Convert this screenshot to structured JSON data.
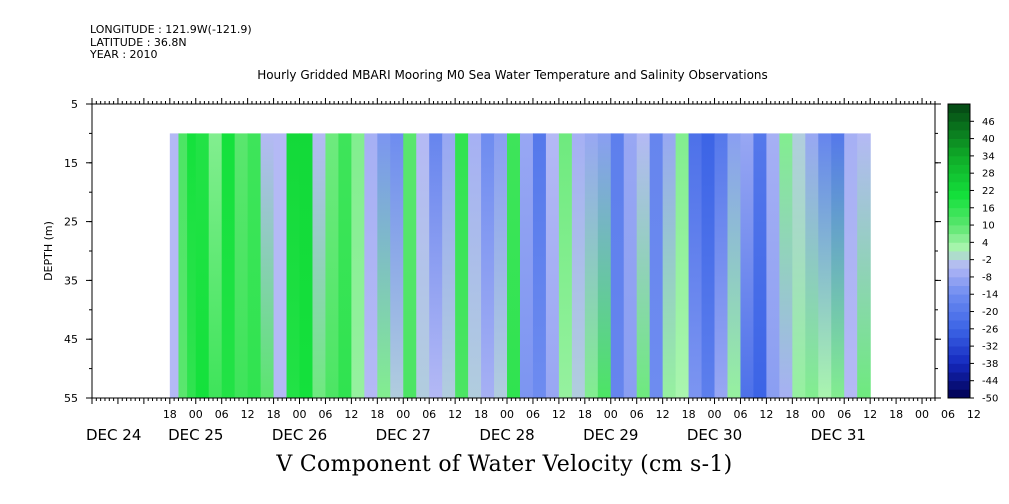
{
  "header": {
    "longitude": "LONGITUDE : 121.9W(-121.9)",
    "latitude": "LATITUDE : 36.8N",
    "year": "YEAR : 2010"
  },
  "chart_data": {
    "type": "heatmap",
    "title": "Hourly Gridded MBARI Mooring M0 Sea Water Temperature and Salinity Observations",
    "xlabel": "V Component of Water Velocity (cm s-1)",
    "ylabel": "DEPTH (m)",
    "y_range": [
      5,
      55
    ],
    "y_inverted": true,
    "y_ticks": [
      5,
      15,
      25,
      35,
      45,
      55
    ],
    "data_depth_range": [
      10,
      55
    ],
    "x_hour_ticks": [
      "18",
      "00",
      "06",
      "12",
      "18",
      "00",
      "06",
      "12",
      "18",
      "00",
      "06",
      "12",
      "18",
      "00",
      "06",
      "12",
      "18",
      "00",
      "06",
      "12",
      "18",
      "00",
      "06",
      "12",
      "18",
      "00",
      "06",
      "12",
      "18",
      "00",
      "06",
      "12"
    ],
    "x_day_labels": [
      "DEC 24",
      "DEC 25",
      "DEC 26",
      "DEC 27",
      "DEC 28",
      "DEC 29",
      "DEC 30",
      "DEC 31"
    ],
    "colorbar": {
      "labels": [
        "46",
        "40",
        "34",
        "28",
        "22",
        "16",
        "10",
        "4",
        "-2",
        "-8",
        "-14",
        "-20",
        "-26",
        "-32",
        "-38",
        "-44",
        "-50"
      ],
      "min": -50,
      "max": 52,
      "step": 3,
      "colors": {
        "strong_positive": "#0a5a14",
        "positive": "#14e03a",
        "weak_positive": "#a0f0a8",
        "weak_negative": "#b4b8f0",
        "negative": "#5a78e0",
        "strong_negative": "#000060"
      }
    },
    "columns_hours": [
      {
        "start_hour": 18,
        "end_hour": 20,
        "surface": -4,
        "bottom": -4
      },
      {
        "start_hour": 20,
        "end_hour": 22,
        "surface": 12,
        "bottom": 10
      },
      {
        "start_hour": 22,
        "end_hour": 24,
        "surface": 20,
        "bottom": 16
      },
      {
        "start_hour": 24,
        "end_hour": 27,
        "surface": 18,
        "bottom": 20
      },
      {
        "start_hour": 27,
        "end_hour": 30,
        "surface": 6,
        "bottom": 14
      },
      {
        "start_hour": 30,
        "end_hour": 33,
        "surface": 20,
        "bottom": 18
      },
      {
        "start_hour": 33,
        "end_hour": 36,
        "surface": 10,
        "bottom": 14
      },
      {
        "start_hour": 36,
        "end_hour": 39,
        "surface": 14,
        "bottom": 16
      },
      {
        "start_hour": 39,
        "end_hour": 42,
        "surface": -4,
        "bottom": 10
      },
      {
        "start_hour": 42,
        "end_hour": 45,
        "surface": -4,
        "bottom": -4
      },
      {
        "start_hour": 45,
        "end_hour": 48,
        "surface": 22,
        "bottom": 18
      },
      {
        "start_hour": 48,
        "end_hour": 51,
        "surface": 22,
        "bottom": 20
      },
      {
        "start_hour": 51,
        "end_hour": 54,
        "surface": -4,
        "bottom": 8
      },
      {
        "start_hour": 54,
        "end_hour": 57,
        "surface": 8,
        "bottom": 12
      },
      {
        "start_hour": 57,
        "end_hour": 60,
        "surface": 14,
        "bottom": 16
      },
      {
        "start_hour": 60,
        "end_hour": 63,
        "surface": 6,
        "bottom": 4
      },
      {
        "start_hour": 63,
        "end_hour": 66,
        "surface": -6,
        "bottom": -4
      },
      {
        "start_hour": 66,
        "end_hour": 69,
        "surface": -12,
        "bottom": 6
      },
      {
        "start_hour": 69,
        "end_hour": 72,
        "surface": -14,
        "bottom": -2
      },
      {
        "start_hour": 72,
        "end_hour": 75,
        "surface": 10,
        "bottom": 12
      },
      {
        "start_hour": 75,
        "end_hour": 78,
        "surface": -4,
        "bottom": -2
      },
      {
        "start_hour": 78,
        "end_hour": 81,
        "surface": -16,
        "bottom": -4
      },
      {
        "start_hour": 81,
        "end_hour": 84,
        "surface": -8,
        "bottom": -2
      },
      {
        "start_hour": 84,
        "end_hour": 87,
        "surface": 16,
        "bottom": 12
      },
      {
        "start_hour": 87,
        "end_hour": 90,
        "surface": -6,
        "bottom": -2
      },
      {
        "start_hour": 90,
        "end_hour": 93,
        "surface": -14,
        "bottom": -6
      },
      {
        "start_hour": 93,
        "end_hour": 96,
        "surface": -10,
        "bottom": -2
      },
      {
        "start_hour": 96,
        "end_hour": 99,
        "surface": 14,
        "bottom": 16
      },
      {
        "start_hour": 99,
        "end_hour": 102,
        "surface": -8,
        "bottom": -12
      },
      {
        "start_hour": 102,
        "end_hour": 105,
        "surface": -20,
        "bottom": -14
      },
      {
        "start_hour": 105,
        "end_hour": 108,
        "surface": -4,
        "bottom": -8
      },
      {
        "start_hour": 108,
        "end_hour": 111,
        "surface": 8,
        "bottom": 4
      },
      {
        "start_hour": 111,
        "end_hour": 114,
        "surface": -6,
        "bottom": -2
      },
      {
        "start_hour": 114,
        "end_hour": 117,
        "surface": -8,
        "bottom": 6
      },
      {
        "start_hour": 117,
        "end_hour": 120,
        "surface": -10,
        "bottom": 12
      },
      {
        "start_hour": 120,
        "end_hour": 123,
        "surface": -18,
        "bottom": -16
      },
      {
        "start_hour": 123,
        "end_hour": 126,
        "surface": -8,
        "bottom": -10
      },
      {
        "start_hour": 126,
        "end_hour": 129,
        "surface": -4,
        "bottom": 8
      },
      {
        "start_hour": 129,
        "end_hour": 132,
        "surface": -16,
        "bottom": -14
      },
      {
        "start_hour": 132,
        "end_hour": 135,
        "surface": -8,
        "bottom": 4
      },
      {
        "start_hour": 135,
        "end_hour": 138,
        "surface": 6,
        "bottom": 2
      },
      {
        "start_hour": 138,
        "end_hour": 141,
        "surface": -22,
        "bottom": -12
      },
      {
        "start_hour": 141,
        "end_hour": 144,
        "surface": -26,
        "bottom": -18
      },
      {
        "start_hour": 144,
        "end_hour": 147,
        "surface": -20,
        "bottom": -8
      },
      {
        "start_hour": 147,
        "end_hour": 150,
        "surface": -10,
        "bottom": 4
      },
      {
        "start_hour": 150,
        "end_hour": 153,
        "surface": -8,
        "bottom": -22
      },
      {
        "start_hour": 153,
        "end_hour": 156,
        "surface": -20,
        "bottom": -26
      },
      {
        "start_hour": 156,
        "end_hour": 159,
        "surface": -6,
        "bottom": -10
      },
      {
        "start_hour": 159,
        "end_hour": 162,
        "surface": 6,
        "bottom": -6
      },
      {
        "start_hour": 162,
        "end_hour": 165,
        "surface": -2,
        "bottom": 4
      },
      {
        "start_hour": 165,
        "end_hour": 168,
        "surface": -8,
        "bottom": 6
      },
      {
        "start_hour": 168,
        "end_hour": 171,
        "surface": -16,
        "bottom": 2
      },
      {
        "start_hour": 171,
        "end_hour": 174,
        "surface": -20,
        "bottom": 6
      },
      {
        "start_hour": 174,
        "end_hour": 177,
        "surface": -6,
        "bottom": -4
      },
      {
        "start_hour": 177,
        "end_hour": 180,
        "surface": -4,
        "bottom": 8
      }
    ]
  }
}
